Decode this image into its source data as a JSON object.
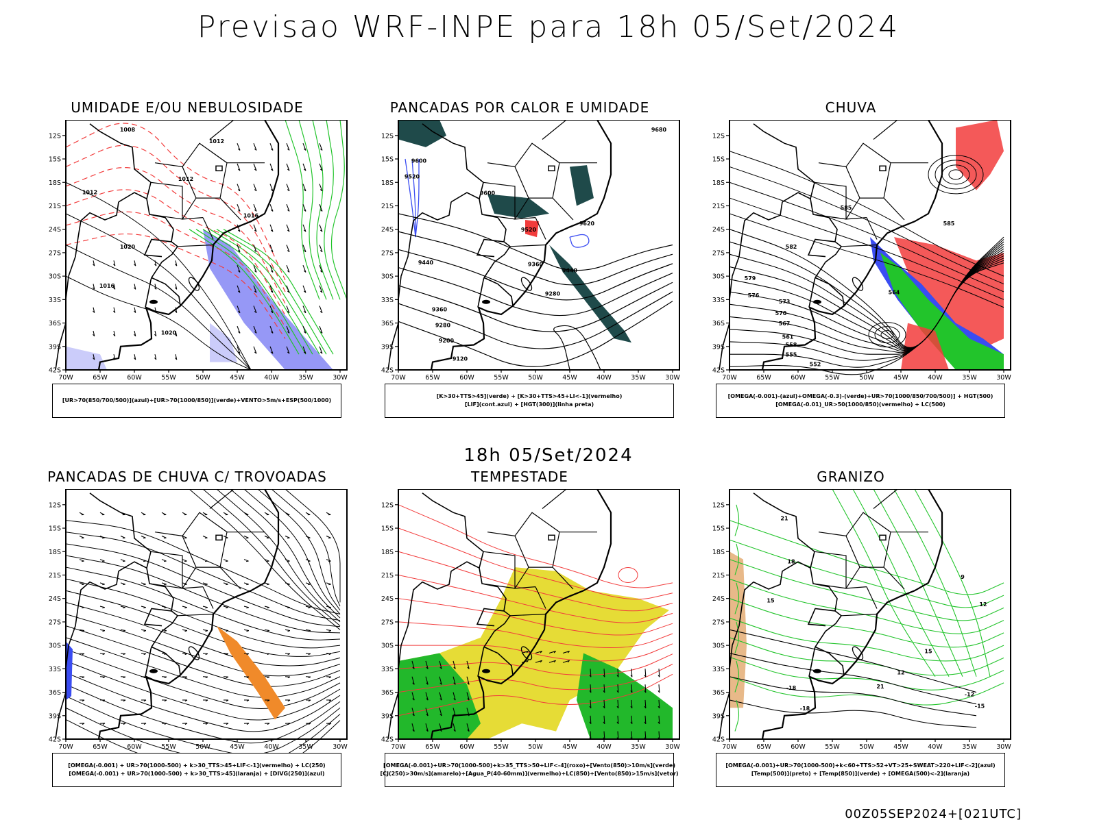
{
  "header": {
    "title": "Previsao WRF-INPE  para 18h 05/Set/2024"
  },
  "subheader": {
    "date": "18h 05/Set/2024"
  },
  "footer": {
    "run_label": "00Z05SEP2024+[021UTC]"
  },
  "axes": {
    "lat_labels": [
      "12S",
      "15S",
      "18S",
      "21S",
      "24S",
      "27S",
      "30S",
      "33S",
      "36S",
      "39S",
      "42S"
    ],
    "lon_labels": [
      "70W",
      "65W",
      "60W",
      "55W",
      "50W",
      "45W",
      "40W",
      "35W",
      "30W"
    ]
  },
  "panels": [
    {
      "title": "UMIDADE E/OU NEBULOSIDADE",
      "legend": [
        "[UR>70(850/700/500)](azul)+[UR>70(1000/850)](verde)+VENTO>5m/s+ESP(500/1000)"
      ],
      "contour_labels": [
        "1012",
        "1012",
        "1016",
        "1016",
        "1020",
        "1020",
        "1008",
        "1012"
      ],
      "colors": {
        "blue": "#6a6cf2",
        "green": "#22c42b",
        "red": "#f23c3c"
      }
    },
    {
      "title": "PANCADAS POR CALOR E UMIDADE",
      "legend": [
        "[K>30+TTS>45](verde) + [K>30+TTS>45+LI<-1](vermelho)",
        "[LIF](cont.azul) + [HGT(300)](linha preta)"
      ],
      "contour_labels": [
        "9680",
        "9600",
        "9520",
        "9600",
        "9520",
        "9440",
        "9360",
        "9280",
        "9200",
        "9120",
        "9440",
        "9360",
        "9280",
        "9620"
      ],
      "colors": {
        "dark_green": "#1f4a4a",
        "red": "#f23c3c",
        "blue": "#3a4cf2"
      }
    },
    {
      "title": "CHUVA",
      "legend": [
        "[OMEGA(-0.001)-(azul)+OMEGA(-0.3)-(verde)+UR>70(1000/850/700/500)] + HGT(500)",
        "[OMEGA(-0.01)_UR>50(1000/850)(vermelho) + LC(500)"
      ],
      "contour_labels": [
        "585",
        "582",
        "579",
        "576",
        "573",
        "570",
        "567",
        "564",
        "561",
        "558",
        "555",
        "552",
        "585"
      ],
      "colors": {
        "red": "#f23c3c",
        "blue": "#3a4cf2",
        "green": "#22c42b"
      }
    },
    {
      "title": "PANCADAS DE CHUVA C/ TROVOADAS",
      "legend": [
        "[OMEGA(-0.001) + UR>70(1000-500) + k>30_TTS>45+LIF<-1](vermelho) + LC(250)",
        "[OMEGA(-0.001) + UR>70(1000-500) + k>30_TTS>45](laranja) + [DIVG(250)](azul)"
      ],
      "contour_labels": [],
      "colors": {
        "orange": "#f08a2a",
        "blue": "#3a4cf2"
      }
    },
    {
      "title": "TEMPESTADE",
      "legend": [
        "[OMEGA(-0.001)+UR>70(1000-500)+k>35_TTS>50+LIF<-4](roxo)+[Vento(850)>10m/s](verde)",
        "[CJ(250)>30m/s](amarelo)+[Agua_P(40-60mm)](vermelho)+LC(850)+[Vento(850)>15m/s](vetor)"
      ],
      "contour_labels": [],
      "colors": {
        "yellow": "#e6dc36",
        "green": "#22b82b",
        "red": "#f23c3c"
      }
    },
    {
      "title": "GRANIZO",
      "legend": [
        "[OMEGA(-0.001)+UR>70(1000-500)+k<60+TTS>52+VT>25+SWEAT>220+LIF<-2](azul)",
        "[Temp(500)](preto) + [Temp(850)](verde) + [OMEGA(500)<-2](laranja)"
      ],
      "contour_labels": [
        "21",
        "18",
        "15",
        "12",
        "9",
        "-12",
        "-15",
        "-18",
        "-18",
        "21",
        "15",
        "12"
      ],
      "colors": {
        "green": "#22c42b",
        "orange": "#d88a3a"
      }
    }
  ]
}
